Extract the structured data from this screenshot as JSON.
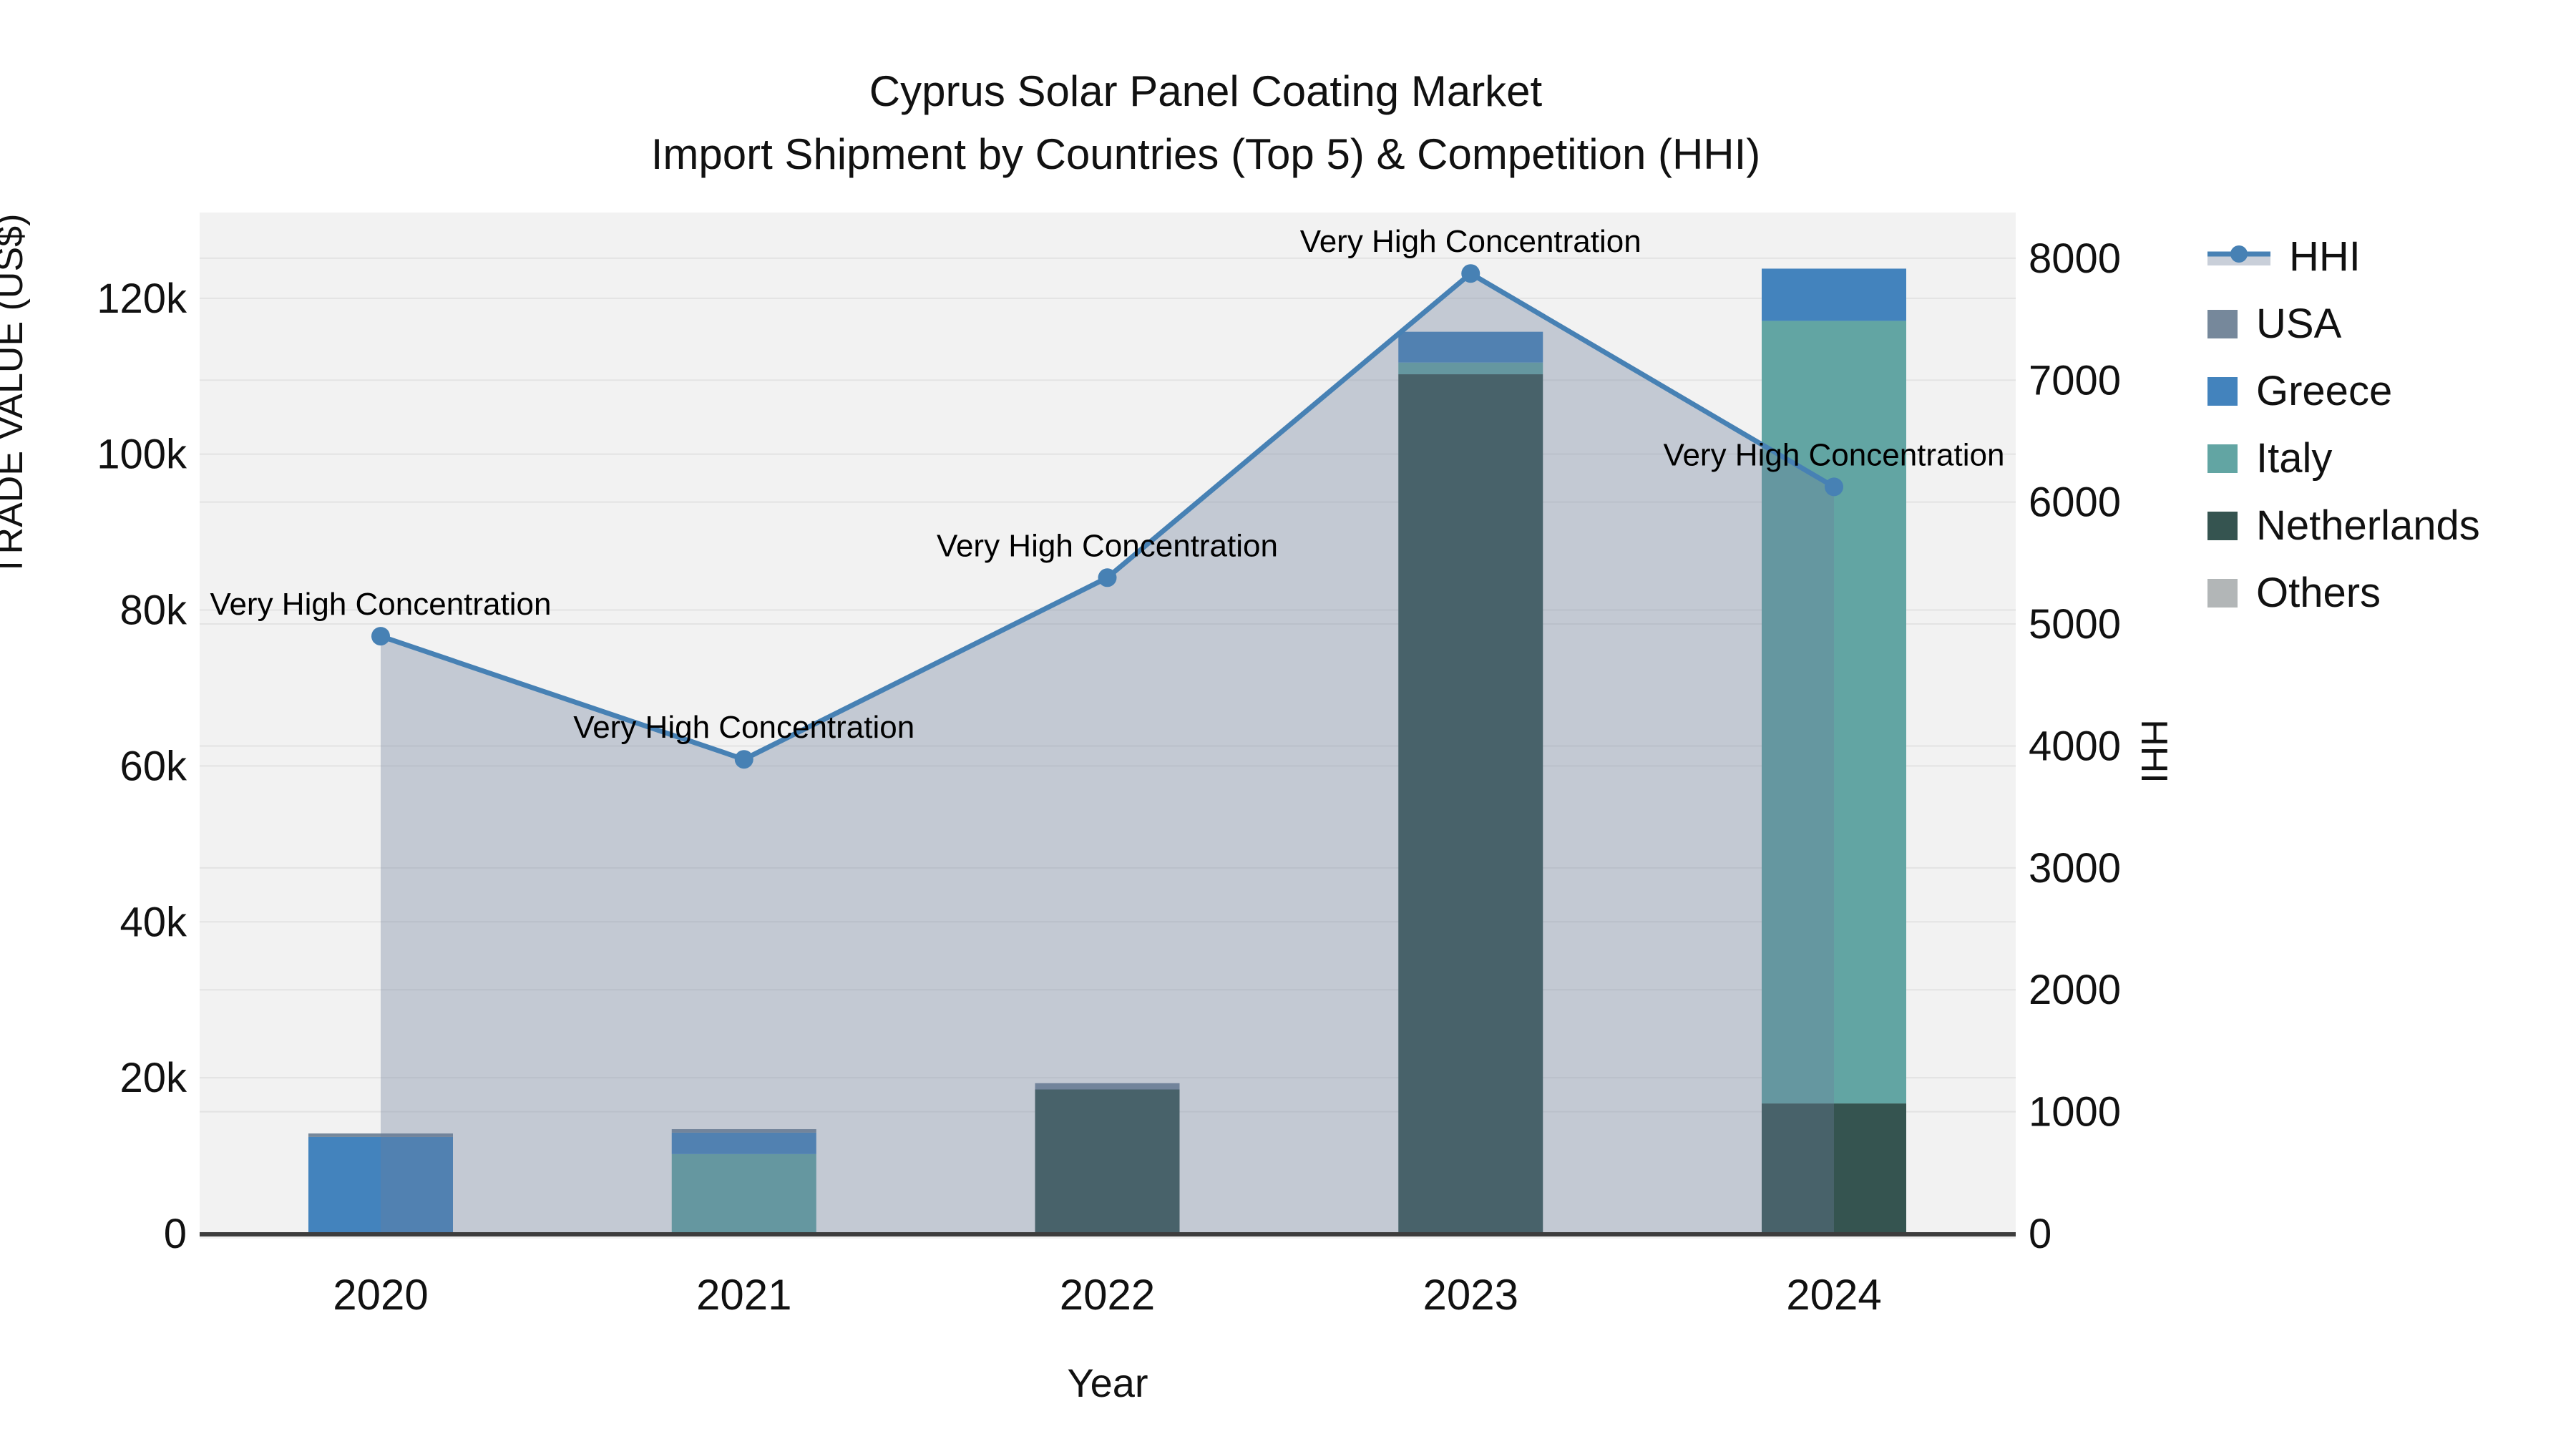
{
  "title": {
    "line1": "Cyprus Solar Panel Coating Market",
    "line2": "Import Shipment by Countries (Top 5) & Competition (HHI)"
  },
  "axes": {
    "x_title": "Year",
    "y_left_title": "TRADE VALUE (US$)",
    "y_right_title": "HHI",
    "x_tick_labels": [
      "2020",
      "2021",
      "2022",
      "2023",
      "2024"
    ],
    "y_left_tick_labels": [
      "0",
      "20k",
      "40k",
      "60k",
      "80k",
      "100k",
      "120k"
    ],
    "y_right_tick_labels": [
      "0",
      "1000",
      "2000",
      "3000",
      "4000",
      "5000",
      "6000",
      "7000",
      "8000"
    ]
  },
  "legend": {
    "items": [
      {
        "label": "HHI",
        "type": "line",
        "color": "#4781b4"
      },
      {
        "label": "USA",
        "type": "swatch",
        "color": "#76889b"
      },
      {
        "label": "Greece",
        "type": "swatch",
        "color": "#4383bd"
      },
      {
        "label": "Italy",
        "type": "swatch",
        "color": "#62a5a3"
      },
      {
        "label": "Netherlands",
        "type": "swatch",
        "color": "#355450"
      },
      {
        "label": "Others",
        "type": "swatch",
        "color": "#b2b6b7"
      }
    ]
  },
  "chart_data": {
    "type": "combo-stacked-bar-line",
    "title": "Cyprus Solar Panel Coating Market — Import Shipment by Countries (Top 5) & Competition (HHI)",
    "xlabel": "Year",
    "ylabel_left": "TRADE VALUE (US$)",
    "ylabel_right": "HHI",
    "categories": [
      "2020",
      "2021",
      "2022",
      "2023",
      "2024"
    ],
    "grid": true,
    "legend_position": "right",
    "y_left_range": [
      0,
      131000
    ],
    "y_left_ticks": [
      0,
      20000,
      40000,
      60000,
      80000,
      100000,
      120000
    ],
    "y_right_range": [
      0,
      8375
    ],
    "y_right_ticks": [
      0,
      1000,
      2000,
      3000,
      4000,
      5000,
      6000,
      7000,
      8000
    ],
    "stack_order_bottom_to_top": [
      "Netherlands",
      "Italy",
      "Greece",
      "USA",
      "Others"
    ],
    "bar_series": [
      {
        "name": "USA",
        "color": "#76889b",
        "values": [
          450,
          450,
          800,
          0,
          0
        ]
      },
      {
        "name": "Greece",
        "color": "#4383bd",
        "values": [
          12400,
          2750,
          0,
          3950,
          6700
        ]
      },
      {
        "name": "Italy",
        "color": "#62a5a3",
        "values": [
          0,
          10200,
          0,
          1500,
          100400
        ]
      },
      {
        "name": "Netherlands",
        "color": "#355450",
        "values": [
          0,
          0,
          18500,
          110250,
          16700
        ]
      },
      {
        "name": "Others",
        "color": "#b2b6b7",
        "values": [
          0,
          0,
          0,
          0,
          0
        ]
      }
    ],
    "line_series": {
      "name": "HHI",
      "color": "#4781b4",
      "fill_color": "rgba(108,125,155,0.35)",
      "values": [
        4900,
        3890,
        5380,
        7875,
        6125
      ]
    },
    "annotations": [
      {
        "category": "2020",
        "text": "Very High Concentration"
      },
      {
        "category": "2021",
        "text": "Very High Concentration"
      },
      {
        "category": "2022",
        "text": "Very High Concentration"
      },
      {
        "category": "2023",
        "text": "Very High Concentration"
      },
      {
        "category": "2024",
        "text": "Very High Concentration"
      }
    ],
    "colors": {
      "plot_background": "#f2f2f2",
      "grid_line": "#e3e3e3",
      "axis_line": "#3d3d3d",
      "legend_fill_sample": "#c9cfd9"
    }
  }
}
